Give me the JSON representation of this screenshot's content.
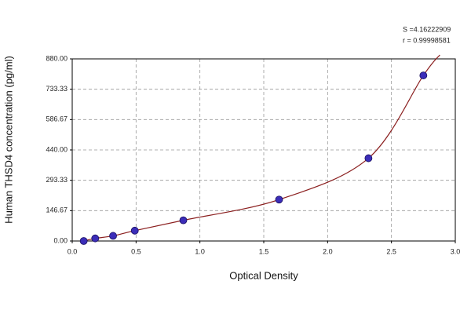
{
  "chart_data": {
    "type": "scatter",
    "x_label": "Optical Density",
    "y_label": "Human THSD4 concentration (pg/ml)",
    "annotations": [
      "S =4.16222909",
      "r = 0.99998581"
    ],
    "series": [
      {
        "color": "#3b2db8",
        "line_color": "#8b1f1f",
        "x": [
          0.09,
          0.18,
          0.32,
          0.49,
          0.87,
          1.62,
          2.32,
          2.75
        ],
        "values": [
          0,
          12.5,
          25,
          50,
          100,
          200,
          400,
          800
        ]
      }
    ],
    "xlim": [
      0,
      3
    ],
    "ylim": [
      0,
      880
    ],
    "xticks": [
      {
        "value": 0,
        "label": "0.0"
      },
      {
        "value": 0.5,
        "label": "0.5"
      },
      {
        "value": 1,
        "label": "1.0"
      },
      {
        "value": 1.5,
        "label": "1.5"
      },
      {
        "value": 2,
        "label": "2.0"
      },
      {
        "value": 2.5,
        "label": "2.5"
      },
      {
        "value": 3,
        "label": "3.0"
      }
    ],
    "yticks": [
      {
        "value": 0,
        "label": "0.00"
      },
      {
        "value": 146.67,
        "label": "146.67"
      },
      {
        "value": 293.33,
        "label": "293.33"
      },
      {
        "value": 440,
        "label": "440.00"
      },
      {
        "value": 586.67,
        "label": "586.67"
      },
      {
        "value": 733.33,
        "label": "733.33"
      },
      {
        "value": 880,
        "label": "880.00"
      }
    ],
    "grid": true
  }
}
